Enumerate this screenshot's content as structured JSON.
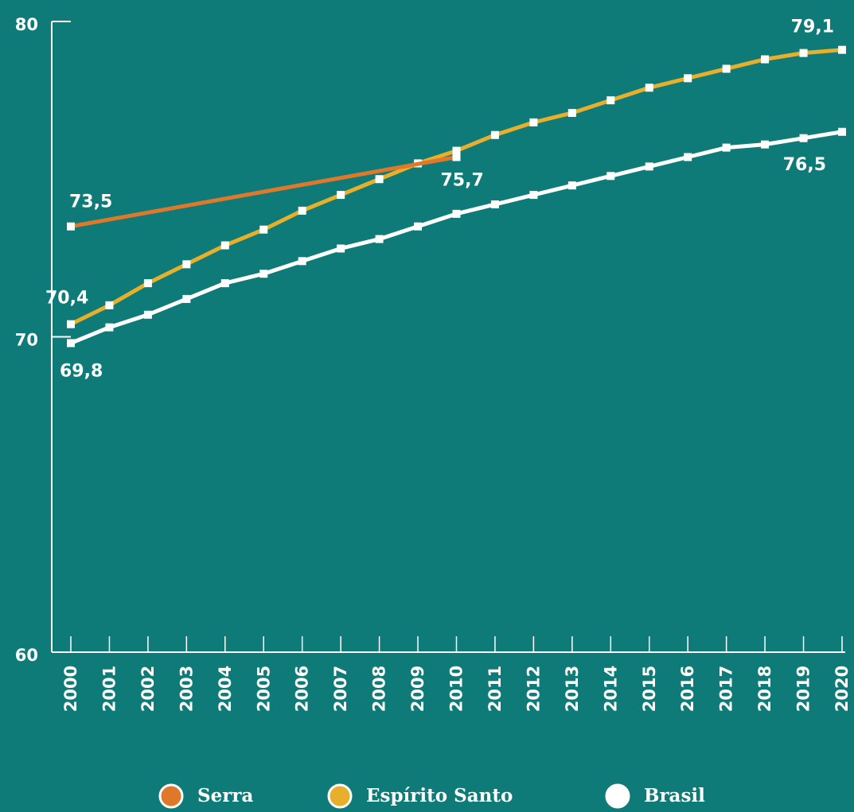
{
  "chart_data": {
    "type": "line",
    "xlim": [
      2000,
      2020
    ],
    "xticks": [
      2000,
      2001,
      2002,
      2003,
      2004,
      2005,
      2006,
      2007,
      2008,
      2009,
      2010,
      2011,
      2012,
      2013,
      2014,
      2015,
      2016,
      2017,
      2018,
      2019,
      2020
    ],
    "ylim": [
      60,
      80
    ],
    "yticks": [
      60,
      70,
      80
    ],
    "series": [
      {
        "name": "Serra",
        "color": "#e0782c",
        "x": [
          2000,
          2010
        ],
        "values": [
          73.5,
          75.7
        ],
        "value_labels": [
          "73,5",
          "75,7"
        ]
      },
      {
        "name": "Espírito Santo",
        "color": "#e8b02a",
        "x": [
          2000,
          2001,
          2002,
          2003,
          2004,
          2005,
          2006,
          2007,
          2008,
          2009,
          2010,
          2011,
          2012,
          2013,
          2014,
          2015,
          2016,
          2017,
          2018,
          2019,
          2020
        ],
        "values": [
          70.4,
          71.0,
          71.7,
          72.3,
          72.9,
          73.4,
          74.0,
          74.5,
          75.0,
          75.5,
          75.9,
          76.4,
          76.8,
          77.1,
          77.5,
          77.9,
          78.2,
          78.5,
          78.8,
          79.0,
          79.1
        ],
        "value_labels": [
          "70,4",
          null,
          null,
          null,
          null,
          null,
          null,
          null,
          null,
          null,
          null,
          null,
          null,
          null,
          null,
          null,
          null,
          null,
          null,
          null,
          "79,1"
        ]
      },
      {
        "name": "Brasil",
        "color": "#ffffff",
        "x": [
          2000,
          2001,
          2002,
          2003,
          2004,
          2005,
          2006,
          2007,
          2008,
          2009,
          2010,
          2011,
          2012,
          2013,
          2014,
          2015,
          2016,
          2017,
          2018,
          2019,
          2020
        ],
        "values": [
          69.8,
          70.3,
          70.7,
          71.2,
          71.7,
          72.0,
          72.4,
          72.8,
          73.1,
          73.5,
          73.9,
          74.2,
          74.5,
          74.8,
          75.1,
          75.4,
          75.7,
          76.0,
          76.1,
          76.3,
          76.5
        ],
        "value_labels": [
          "69,8",
          null,
          null,
          null,
          null,
          null,
          null,
          null,
          null,
          null,
          null,
          null,
          null,
          null,
          null,
          null,
          null,
          null,
          null,
          null,
          "76,5"
        ]
      }
    ]
  }
}
